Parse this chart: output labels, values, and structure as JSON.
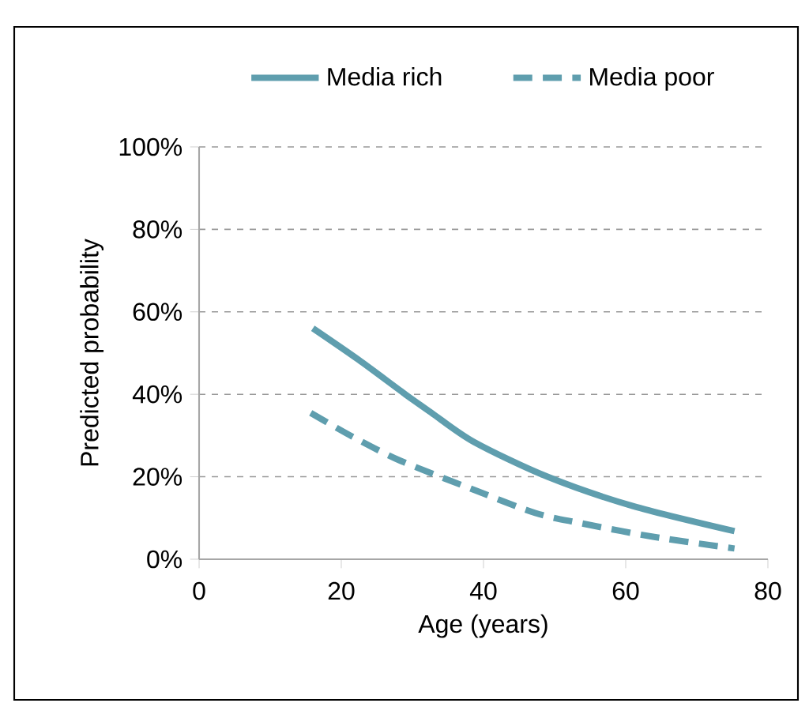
{
  "chart_data": {
    "type": "line",
    "xlabel": "Age (years)",
    "ylabel": "Predicted probability",
    "series": [
      {
        "name": "Media rich",
        "color": "#5f9eae",
        "line_style": "solid",
        "x": [
          16,
          22.4,
          29,
          32.7,
          38.7,
          49,
          61,
          75.3
        ],
        "values": [
          56,
          48.4,
          40,
          35.5,
          28.4,
          20,
          12.9,
          6.8
        ]
      },
      {
        "name": "Media poor",
        "color": "#5f9eae",
        "line_style": "dashed",
        "x": [
          15.7,
          21.6,
          28.3,
          38.7,
          47.3,
          53.5,
          64,
          75.3
        ],
        "values": [
          35.5,
          29.7,
          23.9,
          16.8,
          11.2,
          8.8,
          5.4,
          2.6
        ]
      }
    ],
    "xlim": [
      0,
      80
    ],
    "xticks": [
      0,
      20,
      40,
      60,
      80
    ],
    "ylim": [
      0,
      100
    ],
    "yticks": [
      {
        "value": 0,
        "label": "0%"
      },
      {
        "value": 20,
        "label": "20%"
      },
      {
        "value": 40,
        "label": "40%"
      },
      {
        "value": 60,
        "label": "60%"
      },
      {
        "value": 80,
        "label": "80%"
      },
      {
        "value": 100,
        "label": "100%"
      }
    ],
    "grid": "y",
    "legend": "top",
    "marker": "none"
  }
}
